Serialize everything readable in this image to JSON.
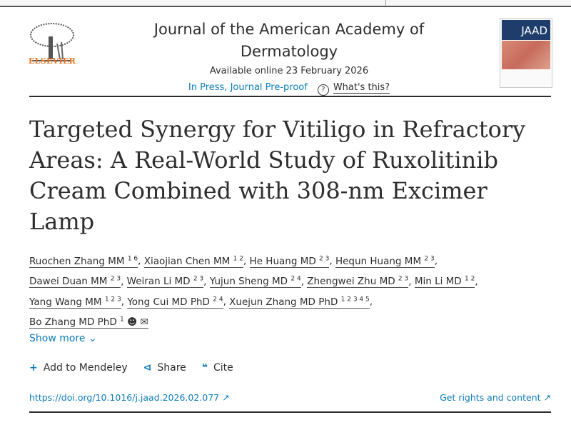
{
  "header": {
    "publisher": "ELSEVIER",
    "journal": "Journal of the American Academy of Dermatology",
    "available": "Available online 23 February 2026",
    "status": "In Press, Journal Pre-proof",
    "whats_this": "What's this?",
    "cover_label": "JAAD"
  },
  "article": {
    "title": "Targeted Synergy for Vitiligo in Refractory Areas: A Real-World Study of Ruxolitinib Cream Combined with 308-nm Excimer Lamp"
  },
  "authors": [
    {
      "name": "Ruochen Zhang MM",
      "aff": "1 6"
    },
    {
      "name": "Xiaojian Chen MM",
      "aff": "1 2"
    },
    {
      "name": "He Huang MD",
      "aff": "2 3"
    },
    {
      "name": "Hequn Huang MM",
      "aff": "2 3"
    },
    {
      "name": "Dawei Duan MM",
      "aff": "2 3"
    },
    {
      "name": "Weiran Li MD",
      "aff": "2 3"
    },
    {
      "name": "Yujun Sheng MD",
      "aff": "2 4"
    },
    {
      "name": "Zhengwei Zhu MD",
      "aff": "2 3"
    },
    {
      "name": "Min Li MD",
      "aff": "1 2"
    },
    {
      "name": "Yang Wang MM",
      "aff": "1 2 3"
    },
    {
      "name": "Yong Cui MD PhD",
      "aff": "2 4"
    },
    {
      "name": "Xuejun Zhang MD PhD",
      "aff": "1 2 3 4 5"
    },
    {
      "name": "Bo Zhang MD PhD",
      "aff": "1"
    }
  ],
  "show_more": "Show more",
  "actions": {
    "mendeley": "Add to Mendeley",
    "share": "Share",
    "cite": "Cite"
  },
  "links": {
    "doi": "https://doi.org/10.1016/j.jaad.2026.02.077",
    "rights": "Get rights and content"
  },
  "colors": {
    "link": "#0c7dbb",
    "elsevier": "#e9711c"
  }
}
